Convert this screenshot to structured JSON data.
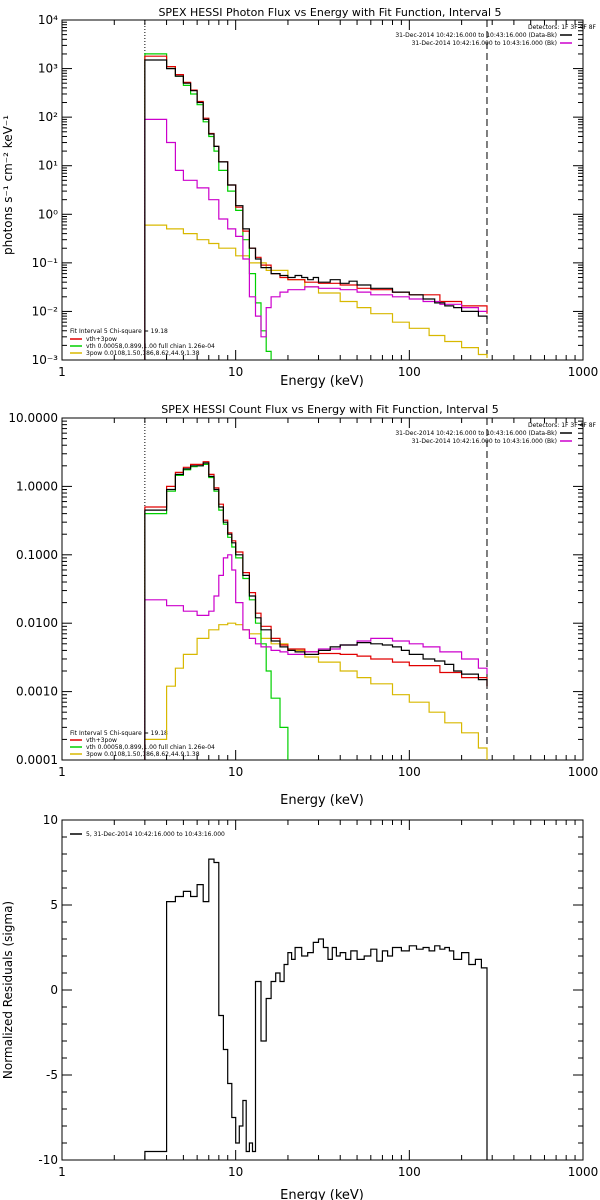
{
  "colors": {
    "black": "#000000",
    "red": "#e00000",
    "green": "#00d000",
    "magenta": "#cc00cc",
    "yellow": "#d8b800"
  },
  "chart_data": [
    {
      "id": "photon",
      "type": "line",
      "title": "SPEX HESSI Photon Flux vs Energy with Fit Function, Interval 5",
      "xlabel": "Energy (keV)",
      "ylabel": "photons s⁻¹ cm⁻² keV⁻¹",
      "xscale": "log",
      "yscale": "log",
      "xlim": [
        1,
        1000
      ],
      "ylim": [
        0.001,
        10000
      ],
      "xticks": [
        {
          "v": 1,
          "label": "1"
        },
        {
          "v": 10,
          "label": "10"
        },
        {
          "v": 100,
          "label": "100"
        },
        {
          "v": 1000,
          "label": "1000"
        }
      ],
      "yticks": [
        {
          "v": 0.001,
          "label": "10⁻³"
        },
        {
          "v": 0.01,
          "label": "10⁻²"
        },
        {
          "v": 0.1,
          "label": "10⁻¹"
        },
        {
          "v": 1,
          "label": "10⁰"
        },
        {
          "v": 10,
          "label": "10¹"
        },
        {
          "v": 100,
          "label": "10²"
        },
        {
          "v": 1000,
          "label": "10³"
        },
        {
          "v": 10000,
          "label": "10⁴"
        }
      ],
      "vlines": [
        {
          "x": 3,
          "style": "dotted"
        },
        {
          "x": 280,
          "style": "dashed"
        }
      ],
      "legend_top": [
        "Detectors: 1F 3F 4F 8F",
        "31-Dec-2014 10:42:16.000 to 10:43:16.000 (Data-Bk)",
        "31-Dec-2014 10:42:16.000 to 10:43:16.000 (Bk)"
      ],
      "legend_bottom": {
        "header": "Fit Interval 5   Chi-square = 19.18",
        "entries": [
          {
            "label": "vth+3pow",
            "color": "red"
          },
          {
            "label": "vth 0.00058,0.899,1.00  full chian 1.26e-04",
            "color": "green"
          },
          {
            "label": "3pow 0.0108,1.50,186,8.62,44.9,1.38",
            "color": "yellow"
          }
        ]
      },
      "series": [
        {
          "color": "black",
          "x": [
            3,
            3.5,
            4,
            4.5,
            5,
            5.5,
            6,
            6.5,
            7,
            7.5,
            8,
            9,
            10,
            11,
            12,
            13,
            14,
            16,
            18,
            20,
            22,
            24,
            26,
            28,
            30,
            35,
            40,
            45,
            50,
            60,
            70,
            80,
            100,
            120,
            140,
            160,
            180,
            200,
            250,
            280
          ],
          "y": [
            1500,
            1500,
            1000,
            700,
            500,
            350,
            200,
            90,
            45,
            25,
            12,
            4,
            1.5,
            0.5,
            0.2,
            0.12,
            0.08,
            0.06,
            0.055,
            0.05,
            0.055,
            0.05,
            0.045,
            0.05,
            0.04,
            0.045,
            0.038,
            0.042,
            0.035,
            0.03,
            0.03,
            0.025,
            0.022,
            0.018,
            0.015,
            0.013,
            0.012,
            0.01,
            0.008,
            0.007
          ]
        },
        {
          "color": "red",
          "x": [
            3,
            3.5,
            4,
            4.5,
            5,
            5.5,
            6,
            6.5,
            7,
            7.5,
            8,
            9,
            10,
            11,
            12,
            13,
            14,
            16,
            18,
            20,
            25,
            30,
            40,
            50,
            60,
            80,
            100,
            150,
            200,
            280
          ],
          "y": [
            1800,
            1800,
            1100,
            750,
            520,
            360,
            210,
            95,
            46,
            25,
            12,
            4,
            1.4,
            0.45,
            0.2,
            0.13,
            0.09,
            0.06,
            0.05,
            0.045,
            0.04,
            0.038,
            0.035,
            0.03,
            0.028,
            0.025,
            0.022,
            0.016,
            0.013,
            0.009
          ]
        },
        {
          "color": "green",
          "x": [
            3,
            3.5,
            4,
            4.5,
            5,
            5.5,
            6,
            6.5,
            7,
            7.5,
            8,
            9,
            10,
            11,
            12,
            13,
            14,
            15,
            16
          ],
          "y": [
            2000,
            2000,
            1100,
            700,
            450,
            300,
            180,
            80,
            40,
            20,
            8,
            3,
            1.2,
            0.3,
            0.06,
            0.015,
            0.004,
            0.0015,
            0.001
          ]
        },
        {
          "color": "magenta",
          "x": [
            3,
            3.5,
            4,
            4.5,
            5,
            6,
            7,
            8,
            9,
            10,
            11,
            12,
            13,
            14,
            15,
            16,
            18,
            20,
            25,
            30,
            40,
            50,
            60,
            80,
            100,
            120,
            150,
            200,
            250,
            280
          ],
          "y": [
            90,
            90,
            30,
            8,
            5,
            3.5,
            2,
            0.8,
            0.5,
            0.35,
            0.12,
            0.02,
            0.008,
            0.003,
            0.012,
            0.02,
            0.025,
            0.028,
            0.032,
            0.03,
            0.028,
            0.025,
            0.022,
            0.02,
            0.018,
            0.016,
            0.014,
            0.012,
            0.01,
            0.01
          ]
        },
        {
          "color": "yellow",
          "x": [
            3,
            4,
            5,
            6,
            7,
            8,
            10,
            12,
            15,
            20,
            25,
            30,
            40,
            50,
            60,
            80,
            100,
            130,
            160,
            200,
            250,
            280
          ],
          "y": [
            0.6,
            0.5,
            0.4,
            0.3,
            0.25,
            0.2,
            0.14,
            0.1,
            0.07,
            0.045,
            0.032,
            0.024,
            0.016,
            0.012,
            0.009,
            0.006,
            0.0045,
            0.0032,
            0.0024,
            0.0018,
            0.0013,
            0.0011
          ]
        }
      ]
    },
    {
      "id": "count",
      "type": "line",
      "title": "SPEX HESSI Count Flux vs Energy with Fit Function, Interval 5",
      "xlabel": "Energy (keV)",
      "ylabel": "",
      "xscale": "log",
      "yscale": "log",
      "xlim": [
        1,
        1000
      ],
      "ylim": [
        0.0001,
        10
      ],
      "xticks": [
        {
          "v": 1,
          "label": "1"
        },
        {
          "v": 10,
          "label": "10"
        },
        {
          "v": 100,
          "label": "100"
        },
        {
          "v": 1000,
          "label": "1000"
        }
      ],
      "yticks": [
        {
          "v": 0.0001,
          "label": "0.0001"
        },
        {
          "v": 0.001,
          "label": "0.0010"
        },
        {
          "v": 0.01,
          "label": "0.0100"
        },
        {
          "v": 0.1,
          "label": "0.1000"
        },
        {
          "v": 1,
          "label": "1.0000"
        },
        {
          "v": 10,
          "label": "10.0000"
        }
      ],
      "vlines": [
        {
          "x": 3,
          "style": "dotted"
        },
        {
          "x": 280,
          "style": "dashed"
        }
      ],
      "legend_top": [
        "Detectors: 1F 3F 4F 8F",
        "31-Dec-2014 10:42:16.000 to 10:43:16.000 (Data-Bk)",
        "31-Dec-2014 10:42:16.000 to 10:43:16.000 (Bk)"
      ],
      "legend_bottom": {
        "header": "Fit Interval 5   Chi-square = 19.18",
        "entries": [
          {
            "label": "vth+3pow",
            "color": "red"
          },
          {
            "label": "vth 0.00058,0.899,1.00  full chian 1.26e-04",
            "color": "green"
          },
          {
            "label": "3pow 0.0108,1.50,186,8.62,44.9,1.38",
            "color": "yellow"
          }
        ]
      },
      "series": [
        {
          "color": "black",
          "x": [
            3,
            3.5,
            4,
            4.5,
            5,
            5.5,
            6,
            6.5,
            7,
            7.5,
            8,
            8.5,
            9,
            9.5,
            10,
            11,
            12,
            13,
            14,
            16,
            18,
            20,
            22,
            25,
            30,
            35,
            40,
            50,
            60,
            70,
            80,
            90,
            100,
            120,
            140,
            160,
            180,
            200,
            250,
            280
          ],
          "y": [
            0.45,
            0.45,
            0.9,
            1.5,
            1.8,
            2.0,
            2.0,
            2.2,
            1.4,
            0.9,
            0.5,
            0.3,
            0.2,
            0.15,
            0.1,
            0.05,
            0.025,
            0.012,
            0.008,
            0.0055,
            0.0045,
            0.004,
            0.0038,
            0.0035,
            0.004,
            0.0045,
            0.0048,
            0.0052,
            0.005,
            0.0048,
            0.0045,
            0.004,
            0.0035,
            0.003,
            0.0028,
            0.0025,
            0.002,
            0.0018,
            0.0015,
            0.0012
          ]
        },
        {
          "color": "red",
          "x": [
            3,
            3.5,
            4,
            4.5,
            5,
            5.5,
            6,
            6.5,
            7,
            7.5,
            8,
            8.5,
            9,
            9.5,
            10,
            11,
            12,
            13,
            14,
            16,
            18,
            20,
            25,
            30,
            40,
            50,
            60,
            80,
            100,
            150,
            200,
            280
          ],
          "y": [
            0.5,
            0.5,
            1.0,
            1.6,
            1.9,
            2.1,
            2.1,
            2.3,
            1.5,
            0.95,
            0.55,
            0.32,
            0.21,
            0.16,
            0.11,
            0.055,
            0.028,
            0.014,
            0.009,
            0.006,
            0.0048,
            0.0042,
            0.0038,
            0.0036,
            0.0035,
            0.0033,
            0.003,
            0.0027,
            0.0024,
            0.0019,
            0.0016,
            0.0012
          ]
        },
        {
          "color": "green",
          "x": [
            3,
            3.5,
            4,
            4.5,
            5,
            5.5,
            6,
            6.5,
            7,
            7.5,
            8,
            8.5,
            9,
            9.5,
            10,
            11,
            12,
            13,
            14,
            15,
            16,
            18,
            20
          ],
          "y": [
            0.4,
            0.4,
            0.85,
            1.45,
            1.75,
            1.95,
            2.0,
            2.1,
            1.35,
            0.85,
            0.45,
            0.28,
            0.18,
            0.13,
            0.09,
            0.045,
            0.022,
            0.01,
            0.005,
            0.002,
            0.0008,
            0.0003,
            0.0001
          ]
        },
        {
          "color": "magenta",
          "x": [
            3,
            3.5,
            4,
            5,
            6,
            7,
            7.5,
            8,
            8.5,
            9,
            9.5,
            10,
            11,
            12,
            13,
            14,
            16,
            18,
            20,
            25,
            30,
            40,
            50,
            60,
            80,
            100,
            120,
            150,
            200,
            250,
            280
          ],
          "y": [
            0.022,
            0.022,
            0.018,
            0.015,
            0.013,
            0.015,
            0.025,
            0.05,
            0.09,
            0.1,
            0.06,
            0.02,
            0.008,
            0.006,
            0.005,
            0.0045,
            0.004,
            0.0038,
            0.0035,
            0.0038,
            0.0042,
            0.0048,
            0.0055,
            0.006,
            0.0055,
            0.005,
            0.0045,
            0.0038,
            0.003,
            0.0022,
            0.0018
          ]
        },
        {
          "color": "yellow",
          "x": [
            3,
            3.5,
            4,
            4.5,
            5,
            6,
            7,
            8,
            9,
            10,
            11,
            12,
            14,
            16,
            20,
            25,
            30,
            40,
            50,
            60,
            80,
            100,
            130,
            160,
            200,
            250,
            280
          ],
          "y": [
            0.0002,
            0.0002,
            0.0012,
            0.0022,
            0.0035,
            0.006,
            0.008,
            0.0095,
            0.01,
            0.0095,
            0.008,
            0.007,
            0.006,
            0.005,
            0.004,
            0.0032,
            0.0027,
            0.002,
            0.0016,
            0.0013,
            0.0009,
            0.0007,
            0.0005,
            0.00035,
            0.00025,
            0.00015,
            0.0001
          ]
        }
      ]
    },
    {
      "id": "resid",
      "type": "line",
      "title": "",
      "xlabel": "Energy (keV)",
      "ylabel": "Normalized Residuals (sigma)",
      "xscale": "log",
      "yscale": "linear",
      "xlim": [
        1,
        1000
      ],
      "ylim": [
        -10,
        10
      ],
      "xticks": [
        {
          "v": 1,
          "label": "1"
        },
        {
          "v": 10,
          "label": "10"
        },
        {
          "v": 100,
          "label": "100"
        },
        {
          "v": 1000,
          "label": "1000"
        }
      ],
      "yticks": [
        {
          "v": -10,
          "label": "-10"
        },
        {
          "v": -5,
          "label": "-5"
        },
        {
          "v": 0,
          "label": "0"
        },
        {
          "v": 5,
          "label": "5"
        },
        {
          "v": 10,
          "label": "10"
        }
      ],
      "vlines": [],
      "legend_top_left": "5, 31-Dec-2014 10:42:16.000 to 10:43:16.000",
      "series": [
        {
          "color": "black",
          "x": [
            3,
            3.5,
            4,
            4.5,
            5,
            5.5,
            6,
            6.5,
            7,
            7.5,
            8,
            8.5,
            9,
            9.5,
            10,
            10.5,
            11,
            11.5,
            12,
            12.5,
            13,
            14,
            15,
            16,
            17,
            18,
            19,
            20,
            21,
            22,
            24,
            26,
            28,
            30,
            32,
            34,
            36,
            38,
            40,
            43,
            46,
            50,
            55,
            60,
            65,
            70,
            75,
            80,
            90,
            100,
            110,
            120,
            130,
            140,
            150,
            160,
            170,
            180,
            200,
            220,
            240,
            260,
            280
          ],
          "y": [
            -9.5,
            -9.5,
            5.2,
            5.5,
            5.8,
            5.5,
            6.2,
            5.2,
            7.7,
            7.5,
            -1.5,
            -3.5,
            -5.5,
            -7.5,
            -9.0,
            -8.0,
            -6.5,
            -9.5,
            -9.0,
            -9.5,
            0.5,
            -3.0,
            -0.5,
            0.5,
            1.0,
            0.5,
            1.5,
            2.2,
            1.8,
            2.5,
            2.0,
            2.2,
            2.8,
            3.0,
            2.5,
            1.8,
            2.5,
            2.0,
            2.2,
            1.8,
            2.3,
            1.8,
            2.0,
            2.4,
            1.7,
            2.3,
            2.0,
            2.5,
            2.3,
            2.6,
            2.4,
            2.5,
            2.3,
            2.6,
            2.4,
            2.5,
            2.3,
            1.8,
            2.2,
            1.5,
            1.8,
            1.3,
            -10
          ]
        }
      ]
    }
  ]
}
